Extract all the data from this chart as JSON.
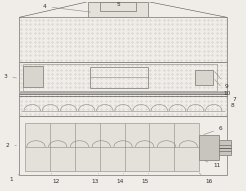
{
  "bg_color": "#f0ede8",
  "line_color": "#888884",
  "dark_line": "#555552",
  "fig_width": 2.46,
  "fig_height": 1.91,
  "dpi": 100,
  "dot_color": "#c8c4be",
  "fill_light": "#e4e0da",
  "fill_mid": "#d8d4ce",
  "fill_dark": "#c8c4be"
}
